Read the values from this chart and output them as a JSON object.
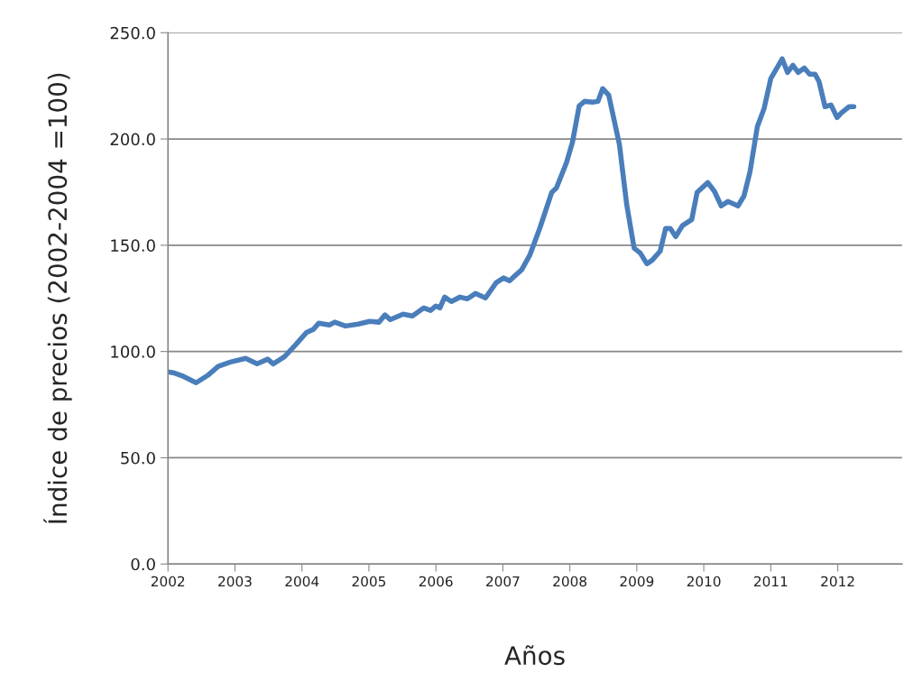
{
  "chart_data": {
    "type": "line",
    "xlabel": "Años",
    "ylabel": "Índice de precios (2002-2004 =100)",
    "x": [
      2002.0,
      2002.08,
      2002.23,
      2002.42,
      2002.59,
      2002.75,
      2002.93,
      2003.16,
      2003.33,
      2003.49,
      2003.57,
      2003.74,
      2003.9,
      2004.07,
      2004.17,
      2004.25,
      2004.41,
      2004.49,
      2004.65,
      2004.84,
      2005.01,
      2005.15,
      2005.24,
      2005.32,
      2005.51,
      2005.65,
      2005.82,
      2005.92,
      2006.0,
      2006.06,
      2006.13,
      2006.23,
      2006.36,
      2006.47,
      2006.59,
      2006.74,
      2006.9,
      2007.01,
      2007.1,
      2007.2,
      2007.28,
      2007.4,
      2007.55,
      2007.73,
      2007.8,
      2007.95,
      2008.04,
      2008.14,
      2008.22,
      2008.34,
      2008.42,
      2008.49,
      2008.58,
      2008.74,
      2008.85,
      2008.96,
      2009.05,
      2009.15,
      2009.23,
      2009.35,
      2009.43,
      2009.5,
      2009.58,
      2009.68,
      2009.82,
      2009.9,
      2010.06,
      2010.16,
      2010.26,
      2010.36,
      2010.51,
      2010.6,
      2010.69,
      2010.8,
      2010.9,
      2011.0,
      2011.17,
      2011.25,
      2011.33,
      2011.41,
      2011.5,
      2011.58,
      2011.66,
      2011.72,
      2011.81,
      2011.9,
      2011.99,
      2012.05,
      2012.17,
      2012.24
    ],
    "series": [
      {
        "color": "#4a7ebb",
        "values": [
          90.4,
          90.0,
          88.3,
          85.3,
          88.7,
          93.0,
          95.0,
          96.8,
          94.2,
          96.4,
          94.2,
          97.6,
          103.0,
          109.0,
          110.4,
          113.3,
          112.5,
          113.8,
          112.0,
          112.9,
          114.2,
          113.8,
          117.2,
          115.0,
          117.6,
          116.7,
          120.5,
          119.3,
          121.4,
          120.5,
          125.6,
          123.5,
          125.6,
          124.8,
          127.3,
          125.2,
          132.4,
          134.6,
          133.3,
          136.2,
          138.4,
          145.2,
          157.9,
          174.9,
          177.0,
          188.9,
          198.6,
          215.6,
          217.7,
          217.3,
          217.7,
          223.7,
          220.7,
          197.4,
          168.9,
          148.6,
          146.4,
          141.3,
          143.0,
          147.3,
          157.9,
          157.9,
          154.1,
          159.2,
          162.1,
          174.9,
          179.5,
          175.3,
          168.5,
          170.6,
          168.5,
          173.2,
          184.6,
          205.9,
          214.3,
          228.4,
          237.7,
          231.3,
          234.7,
          231.3,
          233.4,
          230.5,
          230.5,
          227.1,
          215.2,
          216.0,
          210.1,
          212.2,
          215.2,
          215.2
        ]
      }
    ],
    "xlim": [
      2002,
      2012.96
    ],
    "xticks": [
      2002,
      2003,
      2004,
      2005,
      2006,
      2007,
      2008,
      2009,
      2010,
      2011,
      2012
    ],
    "ylim": [
      0,
      250
    ],
    "yticks": [
      {
        "value": 0,
        "label": "0.0"
      },
      {
        "value": 50,
        "label": "50.0"
      },
      {
        "value": 100,
        "label": "100.0"
      },
      {
        "value": 150,
        "label": "150.0"
      },
      {
        "value": 200,
        "label": "200.0"
      },
      {
        "value": 250,
        "label": "250.0"
      }
    ],
    "grid": "y",
    "marker": "none",
    "line_style": "solid"
  }
}
